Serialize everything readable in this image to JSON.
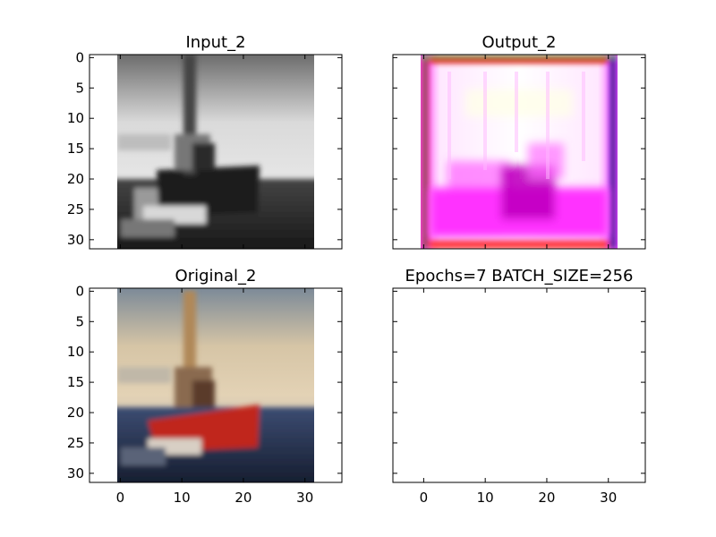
{
  "chart_data": [
    {
      "type": "image",
      "title": "Input_2",
      "colormap": "grayscale",
      "xlim": [
        -5,
        36
      ],
      "ylim": [
        31.5,
        -0.5
      ],
      "xticks": [
        0,
        10,
        20,
        30
      ],
      "yticks": [
        0,
        5,
        10,
        15,
        20,
        25,
        30
      ],
      "xticklabels_visible": false,
      "yticklabels_visible": true,
      "image_extent": [
        -0.5,
        31.5,
        31.5,
        -0.5
      ]
    },
    {
      "type": "image",
      "title": "Output_2",
      "colormap": "rgb",
      "xlim": [
        -5,
        36
      ],
      "ylim": [
        31.5,
        -0.5
      ],
      "xticks": [
        0,
        10,
        20,
        30
      ],
      "yticks": [
        0,
        5,
        10,
        15,
        20,
        25,
        30
      ],
      "xticklabels_visible": false,
      "yticklabels_visible": false,
      "image_extent": [
        -0.5,
        31.5,
        31.5,
        -0.5
      ]
    },
    {
      "type": "image",
      "title": "Original_2",
      "colormap": "rgb",
      "xlim": [
        -5,
        36
      ],
      "ylim": [
        31.5,
        -0.5
      ],
      "xticks": [
        0,
        10,
        20,
        30
      ],
      "yticks": [
        0,
        5,
        10,
        15,
        20,
        25,
        30
      ],
      "xticklabels_visible": true,
      "yticklabels_visible": true,
      "image_extent": [
        -0.5,
        31.5,
        31.5,
        -0.5
      ]
    },
    {
      "type": "image",
      "title": "Epochs=7 BATCH_SIZE=256",
      "colormap": "none",
      "xlim": [
        -5,
        36
      ],
      "ylim": [
        31.5,
        -0.5
      ],
      "xticks": [
        0,
        10,
        20,
        30
      ],
      "yticks": [
        0,
        5,
        10,
        15,
        20,
        25,
        30
      ],
      "xticklabels_visible": true,
      "yticklabels_visible": false,
      "image_extent": null
    }
  ]
}
